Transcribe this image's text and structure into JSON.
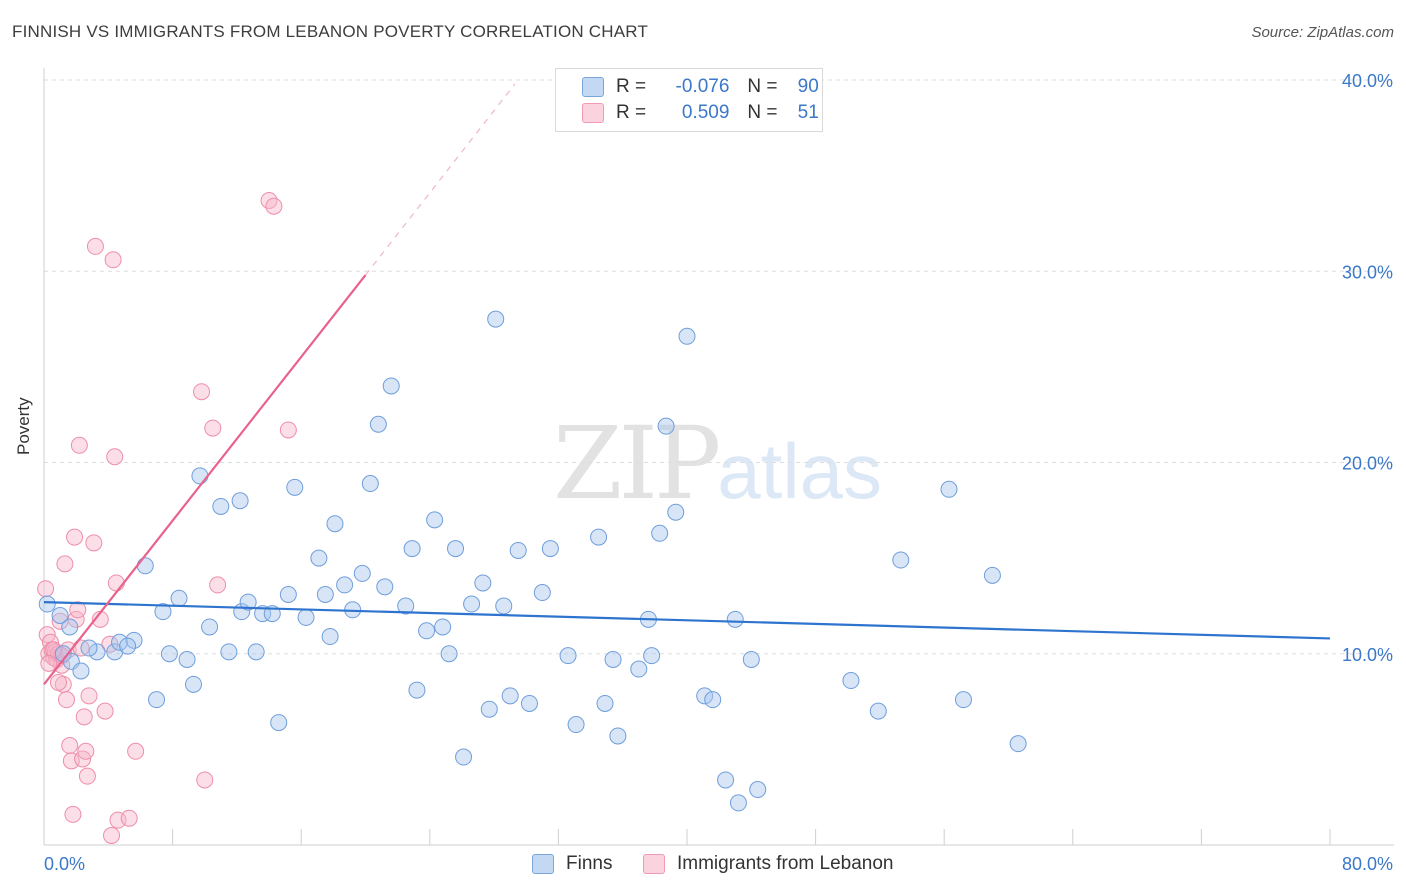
{
  "header": {
    "title": "FINNISH VS IMMIGRANTS FROM LEBANON POVERTY CORRELATION CHART",
    "source": "Source: ZipAtlas.com"
  },
  "watermark": {
    "zip": "ZIP",
    "atlas": "atlas"
  },
  "legend": {
    "r_label": "R =",
    "n_label": "N =",
    "rows": [
      {
        "r": "-0.076",
        "n": "90",
        "color": "#a7c6ee"
      },
      {
        "r": "0.509",
        "n": "51",
        "color": "#f6b6c9"
      }
    ]
  },
  "bottom_legend": {
    "finns": "Finns",
    "lebanon": "Immigrants from Lebanon"
  },
  "colors": {
    "blue_fill": "#a7c6ee",
    "blue_stroke": "#6f9edb",
    "blue_line": "#2e74cf",
    "pink_fill": "#f6b6c9",
    "pink_stroke": "#ee8ea9",
    "pink_line": "#e8628d",
    "tick_text": "#3b78c9",
    "grid": "#dddddd"
  },
  "chart_data": {
    "type": "scatter",
    "title": "FINNISH VS IMMIGRANTS FROM LEBANON POVERTY CORRELATION CHART",
    "xlabel": "",
    "ylabel": "Poverty",
    "xlim": [
      0,
      80
    ],
    "ylim": [
      0,
      40
    ],
    "x_tick_labels": [
      "0.0%",
      "80.0%"
    ],
    "y_tick_labels": [
      "10.0%",
      "20.0%",
      "30.0%",
      "40.0%"
    ],
    "y_ticks": [
      10,
      20,
      30,
      40
    ],
    "grid": true,
    "legend_position": "top-center",
    "series": [
      {
        "name": "Finns",
        "R": -0.076,
        "N": 90,
        "trend": {
          "x": [
            0,
            80
          ],
          "y": [
            12.7,
            10.8
          ]
        },
        "points": [
          [
            0.2,
            12.6
          ],
          [
            1.2,
            10.0
          ],
          [
            1.6,
            11.4
          ],
          [
            1.7,
            9.6
          ],
          [
            2.3,
            9.1
          ],
          [
            3.3,
            10.1
          ],
          [
            4.4,
            10.1
          ],
          [
            4.7,
            10.6
          ],
          [
            5.6,
            10.7
          ],
          [
            6.3,
            14.6
          ],
          [
            7.0,
            7.6
          ],
          [
            7.4,
            12.2
          ],
          [
            7.8,
            10.0
          ],
          [
            8.4,
            12.9
          ],
          [
            8.9,
            9.7
          ],
          [
            9.3,
            8.4
          ],
          [
            9.7,
            19.3
          ],
          [
            10.3,
            11.4
          ],
          [
            11.0,
            17.7
          ],
          [
            11.5,
            10.1
          ],
          [
            12.2,
            18.0
          ],
          [
            12.3,
            12.2
          ],
          [
            12.7,
            12.7
          ],
          [
            13.2,
            10.1
          ],
          [
            13.6,
            12.1
          ],
          [
            14.2,
            12.1
          ],
          [
            14.6,
            6.4
          ],
          [
            15.2,
            13.1
          ],
          [
            15.6,
            18.7
          ],
          [
            16.3,
            11.9
          ],
          [
            17.1,
            15.0
          ],
          [
            17.5,
            13.1
          ],
          [
            17.8,
            10.9
          ],
          [
            18.1,
            16.8
          ],
          [
            18.7,
            13.6
          ],
          [
            19.2,
            12.3
          ],
          [
            19.8,
            14.2
          ],
          [
            20.3,
            18.9
          ],
          [
            20.8,
            22.0
          ],
          [
            21.2,
            13.5
          ],
          [
            21.6,
            24.0
          ],
          [
            22.5,
            12.5
          ],
          [
            22.9,
            15.5
          ],
          [
            23.2,
            8.1
          ],
          [
            23.8,
            11.2
          ],
          [
            24.3,
            17.0
          ],
          [
            24.8,
            11.4
          ],
          [
            25.2,
            10.0
          ],
          [
            25.6,
            15.5
          ],
          [
            26.1,
            4.6
          ],
          [
            26.6,
            12.6
          ],
          [
            27.3,
            13.7
          ],
          [
            27.7,
            7.1
          ],
          [
            28.1,
            27.5
          ],
          [
            28.6,
            12.5
          ],
          [
            29.0,
            7.8
          ],
          [
            29.5,
            15.4
          ],
          [
            30.2,
            7.4
          ],
          [
            31.0,
            13.2
          ],
          [
            31.5,
            15.5
          ],
          [
            32.6,
            9.9
          ],
          [
            33.1,
            6.3
          ],
          [
            34.5,
            16.1
          ],
          [
            34.9,
            7.4
          ],
          [
            35.4,
            9.7
          ],
          [
            35.7,
            5.7
          ],
          [
            37.0,
            9.2
          ],
          [
            37.6,
            11.8
          ],
          [
            37.8,
            9.9
          ],
          [
            38.3,
            16.3
          ],
          [
            38.7,
            21.9
          ],
          [
            39.3,
            17.4
          ],
          [
            40.0,
            26.6
          ],
          [
            41.1,
            7.8
          ],
          [
            41.6,
            7.6
          ],
          [
            42.4,
            3.4
          ],
          [
            43.0,
            11.8
          ],
          [
            43.2,
            2.2
          ],
          [
            44.0,
            9.7
          ],
          [
            44.4,
            2.9
          ],
          [
            50.2,
            8.6
          ],
          [
            51.9,
            7.0
          ],
          [
            53.3,
            14.9
          ],
          [
            56.3,
            18.6
          ],
          [
            57.2,
            7.6
          ],
          [
            59.0,
            14.1
          ],
          [
            60.6,
            5.3
          ],
          [
            1.0,
            12.0
          ],
          [
            2.8,
            10.3
          ],
          [
            5.2,
            10.4
          ]
        ]
      },
      {
        "name": "Immigrants from Lebanon",
        "R": 0.509,
        "N": 51,
        "trend": {
          "x": [
            0,
            20
          ],
          "y": [
            8.4,
            29.8
          ]
        },
        "trend_dashed": {
          "x": [
            20,
            29.3
          ],
          "y": [
            29.8,
            39.8
          ]
        },
        "points": [
          [
            0.1,
            13.4
          ],
          [
            0.2,
            11.0
          ],
          [
            0.3,
            10.0
          ],
          [
            0.4,
            10.6
          ],
          [
            0.5,
            10.2
          ],
          [
            0.6,
            9.8
          ],
          [
            0.7,
            10.1
          ],
          [
            0.8,
            9.7
          ],
          [
            0.9,
            10.0
          ],
          [
            1.0,
            11.7
          ],
          [
            1.1,
            9.4
          ],
          [
            1.2,
            8.4
          ],
          [
            1.3,
            14.7
          ],
          [
            1.4,
            7.6
          ],
          [
            1.5,
            10.2
          ],
          [
            1.6,
            5.2
          ],
          [
            1.7,
            4.4
          ],
          [
            1.8,
            1.6
          ],
          [
            1.9,
            16.1
          ],
          [
            2.0,
            11.8
          ],
          [
            2.1,
            12.3
          ],
          [
            2.2,
            20.9
          ],
          [
            2.3,
            10.3
          ],
          [
            2.4,
            4.5
          ],
          [
            2.5,
            6.7
          ],
          [
            2.6,
            4.9
          ],
          [
            2.7,
            3.6
          ],
          [
            2.8,
            7.8
          ],
          [
            3.1,
            15.8
          ],
          [
            3.5,
            11.8
          ],
          [
            3.8,
            7.0
          ],
          [
            3.2,
            31.3
          ],
          [
            4.1,
            10.5
          ],
          [
            4.2,
            0.5
          ],
          [
            4.3,
            30.6
          ],
          [
            4.4,
            20.3
          ],
          [
            4.5,
            13.7
          ],
          [
            4.6,
            1.3
          ],
          [
            5.3,
            1.4
          ],
          [
            5.7,
            4.9
          ],
          [
            9.8,
            23.7
          ],
          [
            10.0,
            3.4
          ],
          [
            10.5,
            21.8
          ],
          [
            10.8,
            13.6
          ],
          [
            14.0,
            33.7
          ],
          [
            14.3,
            33.4
          ],
          [
            15.2,
            21.7
          ],
          [
            0.9,
            8.5
          ],
          [
            1.1,
            9.9
          ],
          [
            0.6,
            10.2
          ],
          [
            0.3,
            9.5
          ]
        ]
      }
    ]
  }
}
